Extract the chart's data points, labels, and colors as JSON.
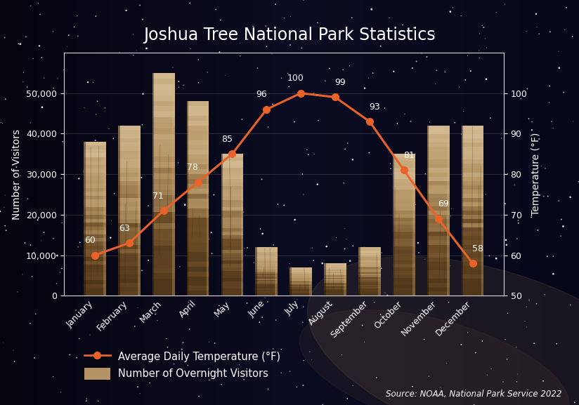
{
  "months": [
    "January",
    "February",
    "March",
    "April",
    "May",
    "June",
    "July",
    "August",
    "September",
    "October",
    "November",
    "December"
  ],
  "visitors": [
    38000,
    42000,
    55000,
    48000,
    35000,
    12000,
    7000,
    8000,
    12000,
    35000,
    42000,
    42000
  ],
  "temperatures": [
    60,
    63,
    71,
    78,
    85,
    96,
    100,
    99,
    93,
    81,
    69,
    58
  ],
  "title": "Joshua Tree National Park Statistics",
  "ylabel_left": "Number of Visitors",
  "ylabel_right": "Temperature (°F)",
  "ylim_left": [
    0,
    60000
  ],
  "ylim_right": [
    50,
    110
  ],
  "yticks_left": [
    0,
    10000,
    20000,
    30000,
    40000,
    50000
  ],
  "yticks_right": [
    50,
    60,
    70,
    80,
    90,
    100
  ],
  "line_color": "#E8622A",
  "bg_color_dark": "#080818",
  "bg_color_mid": "#0F0F28",
  "text_color": "#FFFFFF",
  "grid_color": "#888888",
  "axis_color": "#CCCCCC",
  "source_text": "Source: NOAA, National Park Service 2022",
  "legend_line_label": "Average Daily Temperature (°F)",
  "legend_bar_label": "Number of Overnight Visitors",
  "title_fontsize": 17,
  "label_fontsize": 10,
  "tick_fontsize": 9,
  "annot_fontsize": 9
}
